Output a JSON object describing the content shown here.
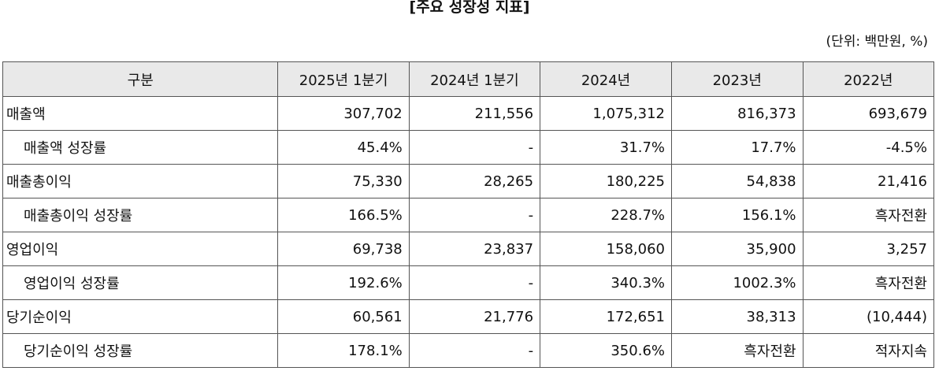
{
  "title": "[주요 성장성 지표]",
  "unit": "(단위: 백만원, %)",
  "table": {
    "header": [
      "구분",
      "2025년 1분기",
      "2024년 1분기",
      "2024년",
      "2023년",
      "2022년"
    ],
    "rows": [
      [
        "매출액",
        "307,702",
        "211,556",
        "1,075,312",
        "816,373",
        "693,679"
      ],
      [
        "매출액 성장률",
        "45.4%",
        "-",
        "31.7%",
        "17.7%",
        "-4.5%"
      ],
      [
        "매출총이익",
        "75,330",
        "28,265",
        "180,225",
        "54,838",
        "21,416"
      ],
      [
        "매출총이익 성장률",
        "166.5%",
        "-",
        "228.7%",
        "156.1%",
        "흑자전환"
      ],
      [
        "영업이익",
        "69,738",
        "23,837",
        "158,060",
        "35,900",
        "3,257"
      ],
      [
        "영업이익 성장률",
        "192.6%",
        "-",
        "340.3%",
        "1002.3%",
        "흑자전환"
      ],
      [
        "당기순이익",
        "60,561",
        "21,776",
        "172,651",
        "38,313",
        "(10,444)"
      ],
      [
        "당기순이익 성장률",
        "178.1%",
        "-",
        "350.6%",
        "흑자전환",
        "적자지속"
      ]
    ]
  }
}
